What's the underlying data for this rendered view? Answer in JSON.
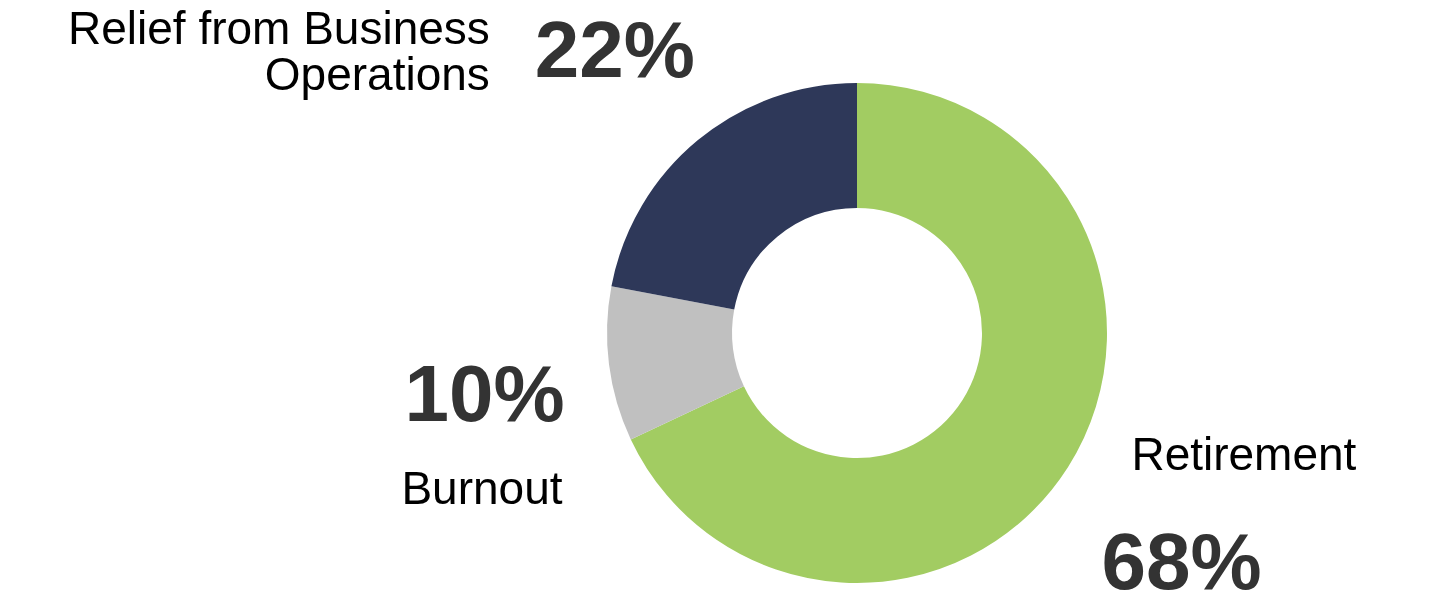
{
  "chart_data": {
    "type": "donut",
    "categories": [
      "Retirement",
      "Burnout",
      "Relief from Business Operations"
    ],
    "values": [
      68,
      10,
      22
    ],
    "colors": [
      "#a2cc62",
      "#c0c0c0",
      "#2e3859"
    ],
    "value_labels": [
      "68%",
      "10%",
      "22%"
    ],
    "legend": false
  }
}
